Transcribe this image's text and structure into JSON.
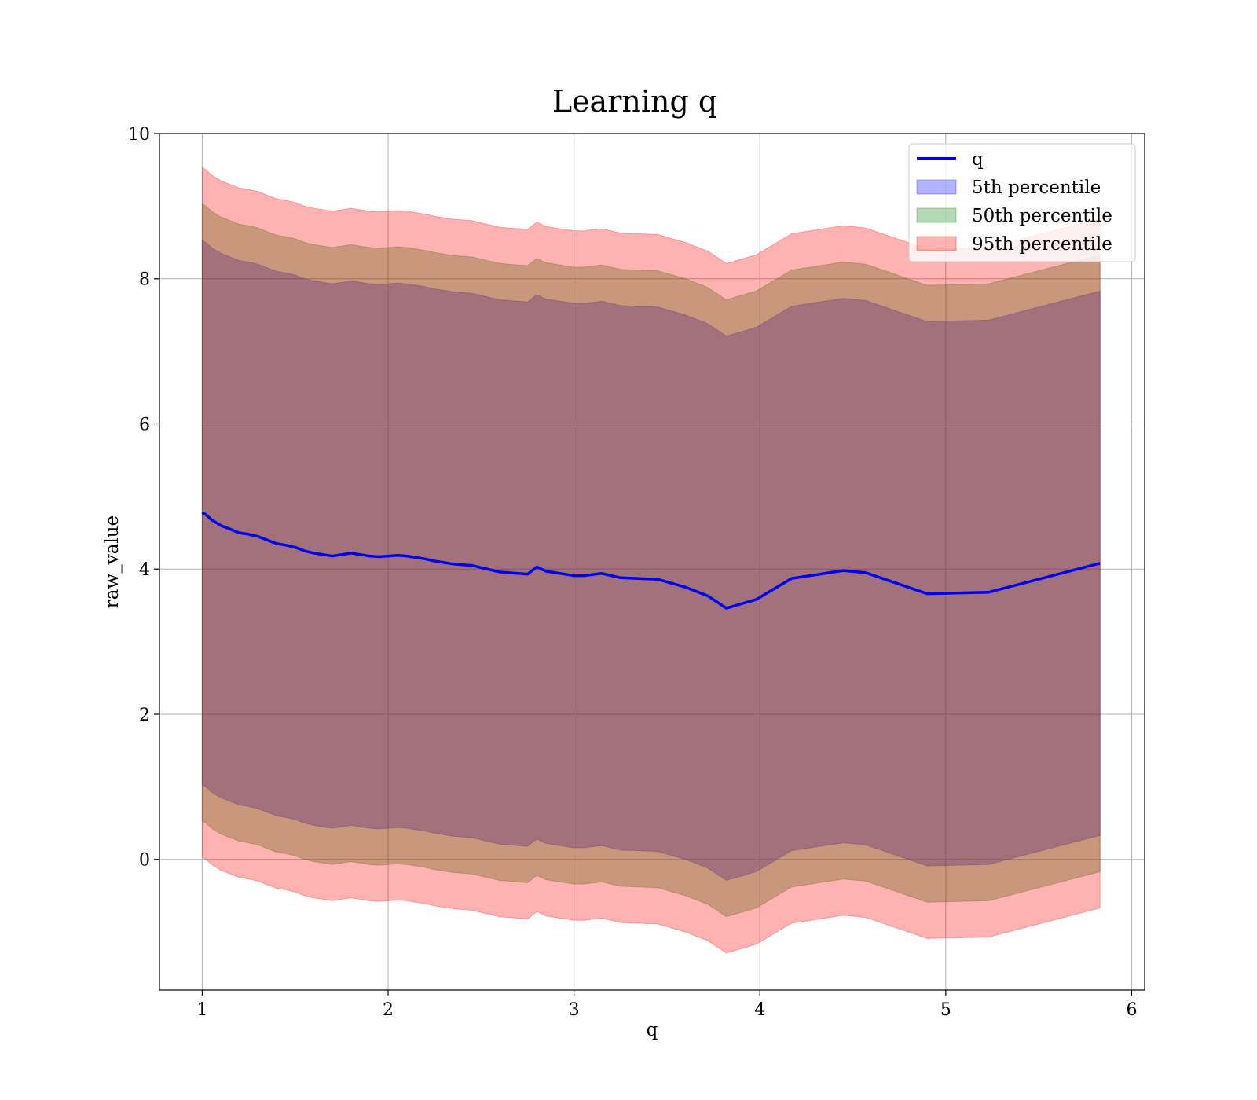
{
  "chart_data": {
    "type": "area",
    "title": "Learning q",
    "xlabel": "q",
    "ylabel": "raw_value",
    "xlim": [
      0.77,
      6.07
    ],
    "ylim": [
      -1.8,
      10.0
    ],
    "x_ticks": [
      "1",
      "2",
      "3",
      "4",
      "5",
      "6"
    ],
    "y_ticks": [
      "0",
      "2",
      "4",
      "6",
      "8",
      "10"
    ],
    "grid": true,
    "legend_position": "top-right",
    "x": [
      1.0,
      1.02,
      1.05,
      1.1,
      1.15,
      1.2,
      1.25,
      1.3,
      1.35,
      1.4,
      1.45,
      1.5,
      1.55,
      1.6,
      1.65,
      1.7,
      1.75,
      1.8,
      1.85,
      1.9,
      1.95,
      2.0,
      2.05,
      2.1,
      2.15,
      2.2,
      2.25,
      2.3,
      2.35,
      2.4,
      2.45,
      2.5,
      2.55,
      2.6,
      2.65,
      2.7,
      2.75,
      2.8,
      2.85,
      2.9,
      2.95,
      3.0,
      3.05,
      3.15,
      3.25,
      3.35,
      3.45,
      3.6,
      3.72,
      3.82,
      3.98,
      4.17,
      4.45,
      4.57,
      4.9,
      5.23,
      5.83
    ],
    "series": [
      {
        "name": "q",
        "role": "line",
        "color": "#0000ee",
        "values": [
          4.78,
          4.75,
          4.68,
          4.6,
          4.55,
          4.5,
          4.48,
          4.45,
          4.4,
          4.35,
          4.33,
          4.3,
          4.25,
          4.22,
          4.2,
          4.18,
          4.2,
          4.22,
          4.2,
          4.18,
          4.17,
          4.18,
          4.19,
          4.18,
          4.16,
          4.14,
          4.11,
          4.09,
          4.07,
          4.06,
          4.05,
          4.02,
          3.99,
          3.96,
          3.95,
          3.94,
          3.93,
          4.03,
          3.97,
          3.95,
          3.93,
          3.91,
          3.91,
          3.94,
          3.88,
          3.87,
          3.86,
          3.75,
          3.63,
          3.46,
          3.58,
          3.87,
          3.98,
          3.95,
          3.66,
          3.68,
          4.08
        ]
      },
      {
        "name": "5th percentile",
        "role": "band",
        "color": "#0000ff",
        "opacity": 0.3,
        "half_width": 3.75
      },
      {
        "name": "50th percentile",
        "role": "band",
        "color": "#008000",
        "opacity": 0.3,
        "half_width": 4.25
      },
      {
        "name": "95th percentile",
        "role": "band",
        "color": "#ff0000",
        "opacity": 0.3,
        "half_width": 4.75
      }
    ]
  }
}
